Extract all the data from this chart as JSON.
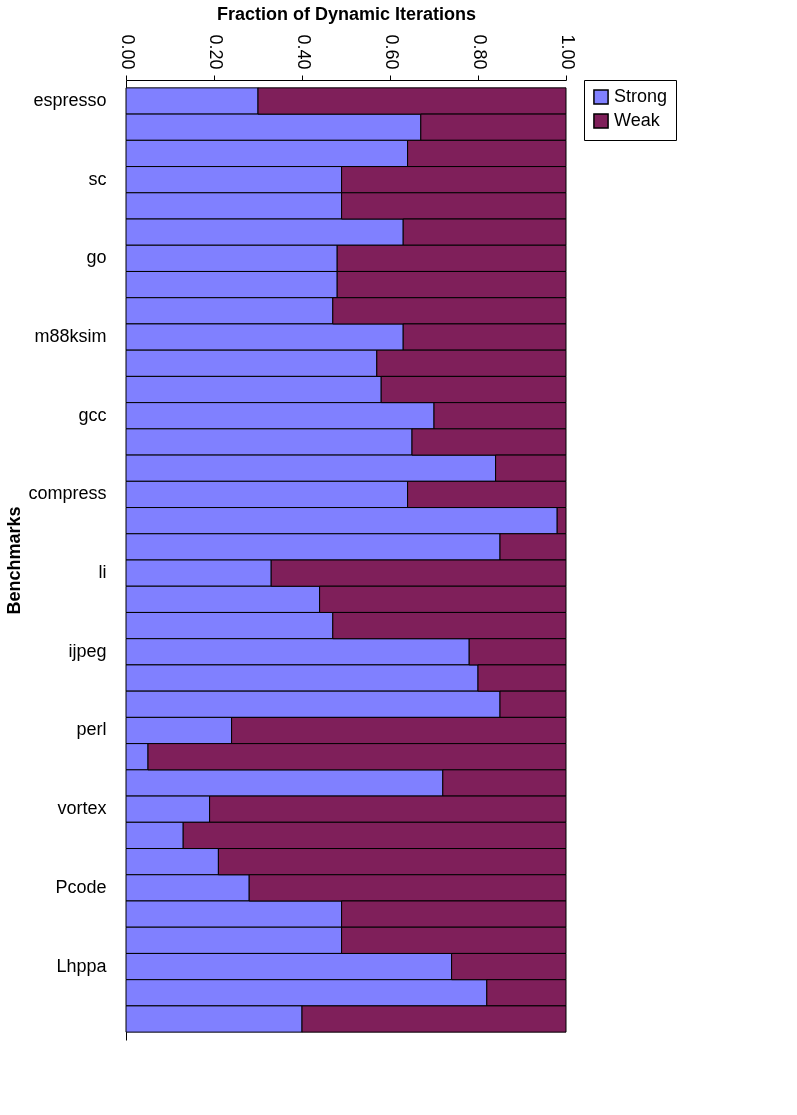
{
  "chart_data": {
    "type": "bar",
    "orientation": "horizontal",
    "stacked": true,
    "title": "Fraction of Dynamic Iterations",
    "ylabel": "Benchmarks",
    "categories": [
      "espresso",
      null,
      null,
      "sc",
      null,
      null,
      "go",
      null,
      null,
      "m88ksim",
      null,
      null,
      "gcc",
      null,
      null,
      "compress",
      null,
      null,
      "li",
      null,
      null,
      "ijpeg",
      null,
      null,
      "perl",
      null,
      null,
      "vortex",
      null,
      null,
      "Pcode",
      null,
      null,
      "Lhppa",
      null,
      null
    ],
    "series": [
      {
        "name": "Strong",
        "color": "#8080ff",
        "values": [
          0.3,
          0.67,
          0.64,
          0.49,
          0.49,
          0.63,
          0.48,
          0.48,
          0.47,
          0.63,
          0.57,
          0.58,
          0.7,
          0.65,
          0.84,
          0.64,
          0.98,
          0.85,
          0.33,
          0.44,
          0.47,
          0.78,
          0.8,
          0.85,
          0.24,
          0.05,
          0.72,
          0.19,
          0.13,
          0.21,
          0.28,
          0.49,
          0.49,
          0.74,
          0.82,
          0.4
        ]
      },
      {
        "name": "Weak",
        "color": "#7f1f5a",
        "values": [
          0.7,
          0.33,
          0.36,
          0.51,
          0.51,
          0.37,
          0.52,
          0.52,
          0.53,
          0.37,
          0.43,
          0.42,
          0.3,
          0.35,
          0.16,
          0.36,
          0.02,
          0.15,
          0.67,
          0.56,
          0.53,
          0.22,
          0.2,
          0.15,
          0.76,
          0.95,
          0.28,
          0.81,
          0.87,
          0.79,
          0.72,
          0.51,
          0.51,
          0.26,
          0.18,
          0.6
        ]
      }
    ],
    "xlim": [
      0,
      1
    ],
    "xticks": [
      {
        "value": 0,
        "label": "0.00"
      },
      {
        "value": 0.2,
        "label": "0.20"
      },
      {
        "value": 0.4,
        "label": "0.40"
      },
      {
        "value": 0.6,
        "label": "0.60"
      },
      {
        "value": 0.8,
        "label": "0.80"
      },
      {
        "value": 1,
        "label": "1.00"
      }
    ],
    "grid": false,
    "legend": "right"
  }
}
